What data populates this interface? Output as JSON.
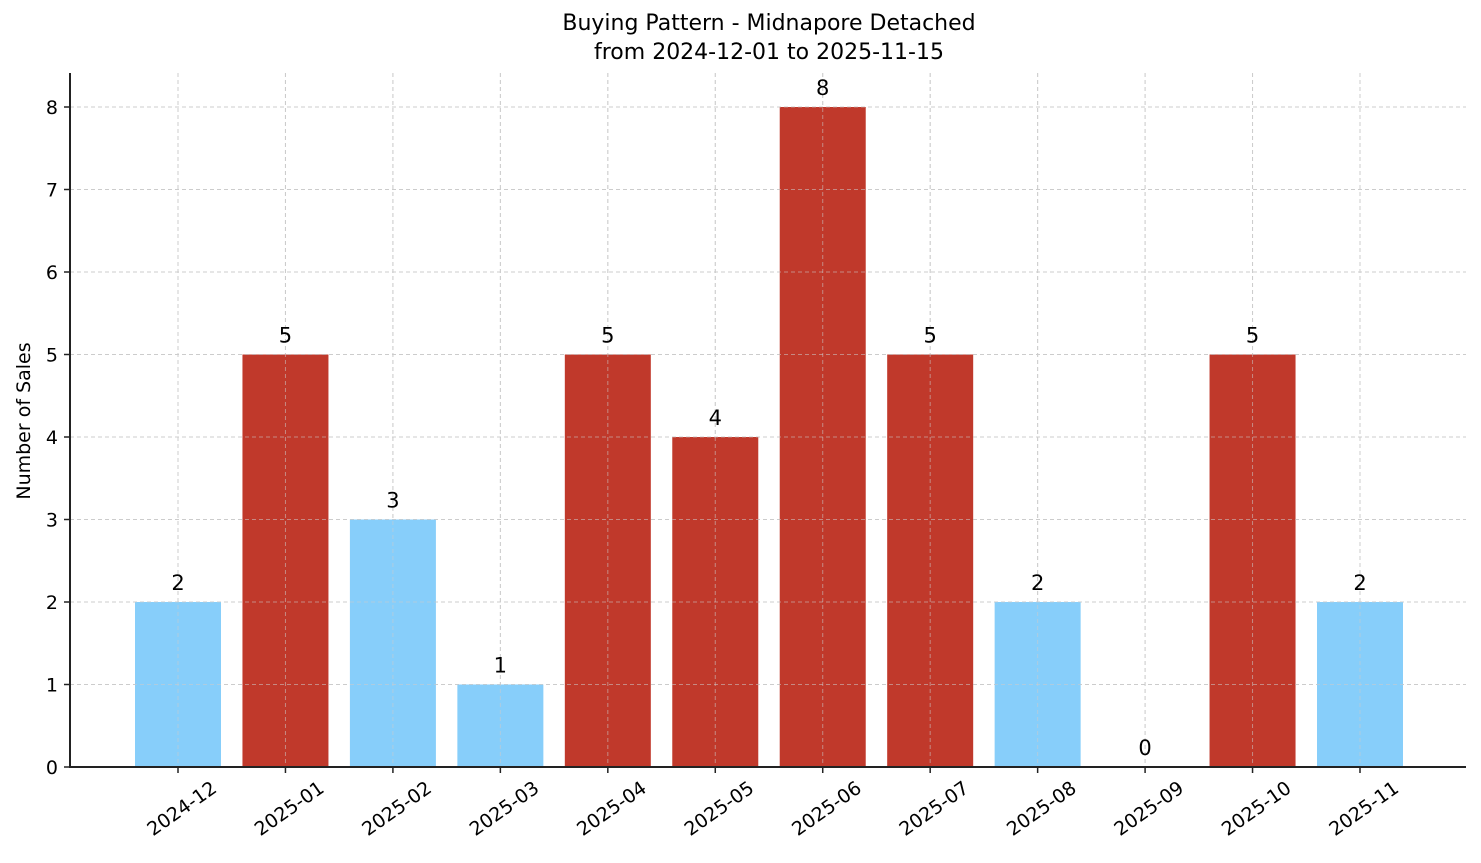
{
  "chart_data": {
    "type": "bar",
    "title": "Buying Pattern - Midnapore Detached",
    "subtitle": "from 2024-12-01 to 2025-11-15",
    "xlabel": "",
    "ylabel": "Number of Sales",
    "categories": [
      "2024-12",
      "2025-01",
      "2025-02",
      "2025-03",
      "2025-04",
      "2025-05",
      "2025-06",
      "2025-07",
      "2025-08",
      "2025-09",
      "2025-10",
      "2025-11"
    ],
    "values": [
      2,
      5,
      3,
      1,
      5,
      4,
      8,
      5,
      2,
      0,
      5,
      2
    ],
    "bar_colors": [
      "#87CEFA",
      "#C0392B",
      "#87CEFA",
      "#87CEFA",
      "#C0392B",
      "#C0392B",
      "#C0392B",
      "#C0392B",
      "#87CEFA",
      "#87CEFA",
      "#C0392B",
      "#87CEFA"
    ],
    "data_labels": [
      "2",
      "5",
      "3",
      "1",
      "5",
      "4",
      "8",
      "5",
      "2",
      "0",
      "5",
      "2"
    ],
    "yticks": [
      0,
      1,
      2,
      3,
      4,
      5,
      6,
      7,
      8
    ],
    "ylim": [
      0,
      8.4
    ],
    "grid": true,
    "legend": null
  },
  "colors": {
    "high": "#C0392B",
    "low": "#87CEFA",
    "grid": "#cccccc",
    "axis": "#222222"
  }
}
